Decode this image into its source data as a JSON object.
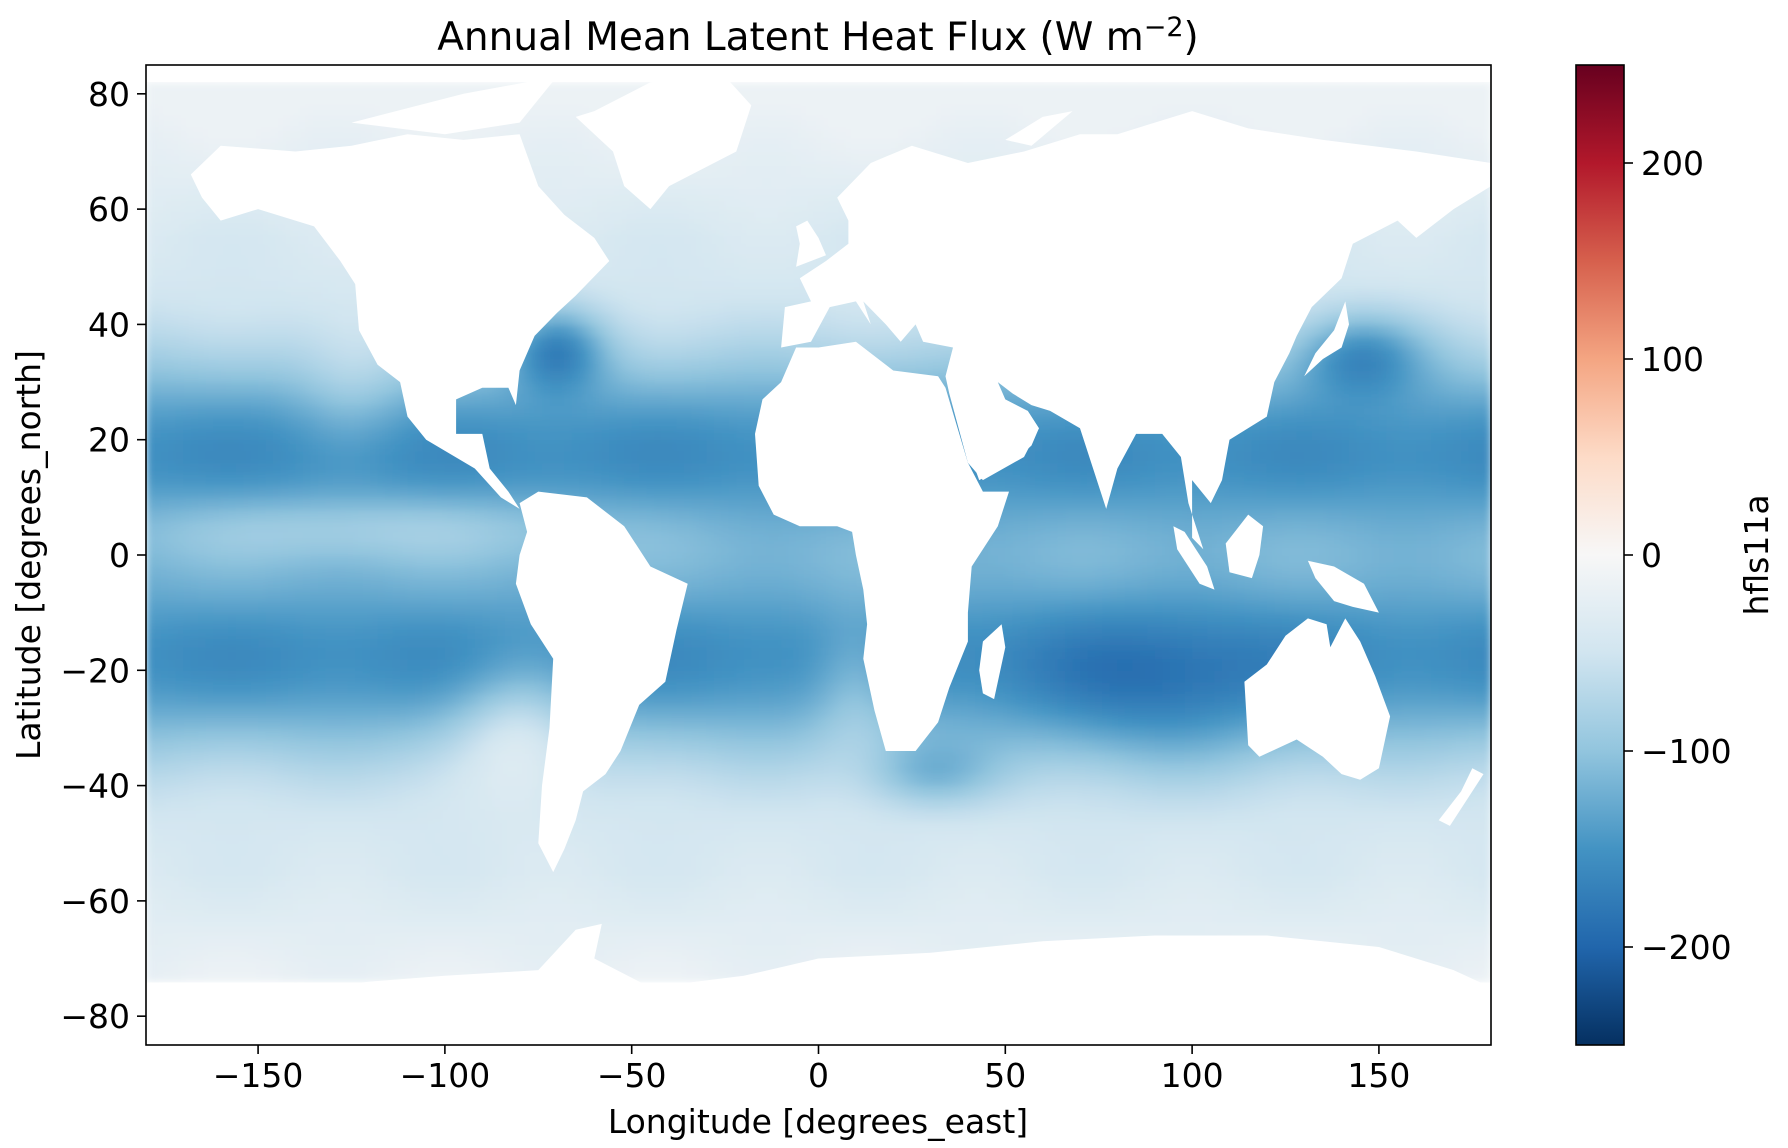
{
  "chart_data": {
    "type": "heatmap",
    "title": "Annual Mean Latent Heat Flux (W m",
    "title_superscript": "−2",
    "title_close": ")",
    "xlabel": "Longitude [degrees_east]",
    "ylabel": "Latitude [degrees_north]",
    "xlim": [
      -180,
      180
    ],
    "ylim": [
      -85,
      85
    ],
    "x_ticks": [
      -150,
      -100,
      -50,
      0,
      50,
      100,
      150
    ],
    "x_tick_labels": [
      "−150",
      "−100",
      "−50",
      "0",
      "50",
      "100",
      "150"
    ],
    "y_ticks": [
      80,
      60,
      40,
      20,
      0,
      -20,
      -40,
      -60,
      -80
    ],
    "y_tick_labels": [
      "80",
      "60",
      "40",
      "20",
      "0",
      "−20",
      "−40",
      "−60",
      "−80"
    ],
    "colorbar": {
      "label": "hfls11a",
      "range": [
        -250,
        250
      ],
      "ticks": [
        200,
        100,
        0,
        -100,
        -200
      ],
      "tick_labels": [
        "200",
        "100",
        "0",
        "−100",
        "−200"
      ],
      "colormap": "RdBu_r",
      "stops": [
        "#053061",
        "#2166ac",
        "#4393c3",
        "#92c5de",
        "#d1e5f0",
        "#f7f7f7",
        "#fddbc7",
        "#f4a582",
        "#d6604d",
        "#b2182b",
        "#67001f"
      ]
    },
    "land_color": "#ffffff",
    "ocean_value_range": [
      -230,
      -20
    ],
    "grid": false
  }
}
